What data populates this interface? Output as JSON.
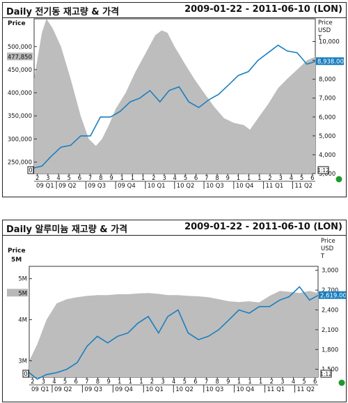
{
  "charts": [
    {
      "title": "Daily 전기동 재고량 & 가격",
      "date_range": "2009-01-22 - 2011-06-10 (LON)",
      "left_axis_title": "Price",
      "right_axis_title": [
        "Price",
        "USD",
        "T"
      ],
      "left_ticks": [
        "500,000",
        "450,000",
        "400,000",
        "350,000",
        "300,000",
        "250,000"
      ],
      "left_tick_values": [
        500000,
        450000,
        400000,
        350000,
        300000,
        250000
      ],
      "left_marker": "477,850",
      "left_zero": "0",
      "right_ticks": [
        "10,000",
        "9,000",
        "8,000",
        "7,000",
        "6,000",
        "5,000",
        "4,000",
        "3,000"
      ],
      "right_tick_values": [
        10000,
        9000,
        8000,
        7000,
        6000,
        5000,
        4000,
        3000
      ],
      "right_marker": "8,938.00",
      "right_scale": "1:12",
      "months": [
        "2",
        "3",
        "4",
        "5",
        "6",
        "7",
        "8",
        "9",
        "1",
        "1",
        "1",
        "2",
        "3",
        "4",
        "5",
        "6",
        "7",
        "8",
        "9",
        "1",
        "1",
        "1",
        "2",
        "3",
        "4",
        "5",
        "6"
      ],
      "quarters": [
        "09 Q1",
        "09 Q2",
        "09 Q3",
        "09 Q4",
        "10 Q1",
        "10 Q2",
        "10 Q3",
        "10 Q4",
        "11 Q1",
        "11 Q2"
      ]
    },
    {
      "title": "Daily 알루미늄 재고량 & 가격",
      "date_range": "2009-01-22 - 2011-06-10 (LON)",
      "left_axis_title": "Price",
      "right_axis_title": [
        "Price",
        "USD",
        "T"
      ],
      "left_ticks": [
        "5M",
        "4M",
        "3M"
      ],
      "left_tick_values": [
        5000000,
        4000000,
        3000000
      ],
      "left_head": "5M",
      "left_marker": "5M",
      "left_zero": "0",
      "right_ticks": [
        "3,000",
        "2,700",
        "2,400",
        "2,100",
        "1,800",
        "1,500"
      ],
      "right_tick_values": [
        3000,
        2700,
        2400,
        2100,
        1800,
        1500
      ],
      "right_marker": "2,619.00",
      "right_scale": "1:12",
      "months": [
        "2",
        "3",
        "4",
        "5",
        "6",
        "7",
        "8",
        "9",
        "1",
        "1",
        "1",
        "2",
        "3",
        "4",
        "5",
        "6",
        "7",
        "8",
        "9",
        "1",
        "1",
        "1",
        "2",
        "3",
        "4",
        "5",
        "6"
      ],
      "quarters": [
        "09 Q1",
        "09 Q2",
        "09 Q3",
        "09 Q4",
        "10 Q1",
        "10 Q2",
        "10 Q3",
        "10 Q4",
        "11 Q1",
        "11 Q2"
      ]
    }
  ],
  "chart_data": [
    {
      "type": "area",
      "title": "Daily 전기동 재고량 & 가격",
      "x_range": [
        "2009-01-22",
        "2011-06-10"
      ],
      "grid": false,
      "legend": "none",
      "series": [
        {
          "name": "재고량",
          "type": "area",
          "axis": "left",
          "color": "#bdbdbd",
          "x": [
            "2009-01-22",
            "2009-02-15",
            "2009-03-01",
            "2009-03-20",
            "2009-04-15",
            "2009-05-15",
            "2009-06-15",
            "2009-07-10",
            "2009-08-01",
            "2009-08-20",
            "2009-09-10",
            "2009-10-01",
            "2009-11-01",
            "2009-12-01",
            "2010-01-01",
            "2010-02-01",
            "2010-02-20",
            "2010-03-10",
            "2010-04-01",
            "2010-05-01",
            "2010-06-01",
            "2010-07-01",
            "2010-08-01",
            "2010-09-01",
            "2010-10-01",
            "2010-11-01",
            "2010-11-20",
            "2010-12-15",
            "2011-01-15",
            "2011-02-15",
            "2011-03-15",
            "2011-04-15",
            "2011-05-15",
            "2011-06-10"
          ],
          "values": [
            430000,
            530000,
            560000,
            540000,
            500000,
            430000,
            350000,
            300000,
            285000,
            300000,
            330000,
            365000,
            400000,
            445000,
            485000,
            525000,
            535000,
            530000,
            500000,
            465000,
            430000,
            400000,
            370000,
            345000,
            335000,
            330000,
            320000,
            345000,
            375000,
            410000,
            430000,
            450000,
            470000,
            477850
          ]
        },
        {
          "name": "가격",
          "type": "line",
          "axis": "right",
          "color": "#1a7ebf",
          "x": [
            "2009-01-22",
            "2009-02-15",
            "2009-03-15",
            "2009-04-15",
            "2009-05-15",
            "2009-06-15",
            "2009-07-15",
            "2009-08-15",
            "2009-09-15",
            "2009-10-15",
            "2009-11-15",
            "2009-12-15",
            "2010-01-15",
            "2010-02-15",
            "2010-03-15",
            "2010-04-15",
            "2010-05-15",
            "2010-06-15",
            "2010-07-15",
            "2010-08-15",
            "2010-09-15",
            "2010-10-15",
            "2010-11-15",
            "2010-12-15",
            "2011-01-15",
            "2011-02-15",
            "2011-03-15",
            "2011-04-15",
            "2011-05-15",
            "2011-06-10"
          ],
          "values": [
            3300,
            3400,
            3900,
            4400,
            4500,
            5000,
            5000,
            6000,
            6000,
            6300,
            6800,
            7000,
            7400,
            6800,
            7400,
            7600,
            6800,
            6500,
            6900,
            7200,
            7700,
            8200,
            8400,
            9000,
            9400,
            9800,
            9500,
            9400,
            8800,
            8938
          ]
        }
      ]
    },
    {
      "type": "area",
      "title": "Daily 알루미늄 재고량 & 가격",
      "x_range": [
        "2009-01-22",
        "2011-06-10"
      ],
      "grid": false,
      "legend": "none",
      "series": [
        {
          "name": "재고량",
          "type": "area",
          "axis": "left",
          "color": "#bdbdbd",
          "x": [
            "2009-01-22",
            "2009-02-15",
            "2009-03-15",
            "2009-04-15",
            "2009-05-15",
            "2009-06-15",
            "2009-07-15",
            "2009-08-15",
            "2009-09-15",
            "2009-10-15",
            "2009-11-15",
            "2009-12-15",
            "2010-01-15",
            "2010-02-15",
            "2010-03-15",
            "2010-04-15",
            "2010-05-15",
            "2010-06-15",
            "2010-07-15",
            "2010-08-15",
            "2010-09-15",
            "2010-10-15",
            "2010-11-15",
            "2010-12-15",
            "2011-01-15",
            "2011-02-15",
            "2011-03-15",
            "2011-04-15",
            "2011-05-15",
            "2011-06-10"
          ],
          "values": [
            3000000,
            3400000,
            4000000,
            4400000,
            4500000,
            4550000,
            4580000,
            4600000,
            4600000,
            4620000,
            4620000,
            4640000,
            4650000,
            4630000,
            4600000,
            4600000,
            4580000,
            4570000,
            4550000,
            4500000,
            4450000,
            4430000,
            4450000,
            4420000,
            4580000,
            4700000,
            4680000,
            4650000,
            4700000,
            4650000
          ]
        },
        {
          "name": "가격",
          "type": "line",
          "axis": "right",
          "color": "#1a7ebf",
          "x": [
            "2009-01-22",
            "2009-02-15",
            "2009-03-15",
            "2009-04-15",
            "2009-05-15",
            "2009-06-15",
            "2009-07-15",
            "2009-08-15",
            "2009-09-15",
            "2009-10-15",
            "2009-11-15",
            "2009-12-15",
            "2010-01-15",
            "2010-02-15",
            "2010-03-15",
            "2010-04-15",
            "2010-05-15",
            "2010-06-15",
            "2010-07-15",
            "2010-08-15",
            "2010-09-15",
            "2010-10-15",
            "2010-11-15",
            "2010-12-15",
            "2011-01-15",
            "2011-02-15",
            "2011-03-15",
            "2011-04-15",
            "2011-05-15",
            "2011-06-10"
          ],
          "values": [
            1450,
            1350,
            1420,
            1450,
            1500,
            1600,
            1850,
            2000,
            1900,
            2000,
            2050,
            2200,
            2300,
            2050,
            2300,
            2400,
            2050,
            1950,
            2000,
            2100,
            2250,
            2400,
            2350,
            2450,
            2450,
            2550,
            2600,
            2750,
            2550,
            2619
          ]
        }
      ]
    }
  ]
}
